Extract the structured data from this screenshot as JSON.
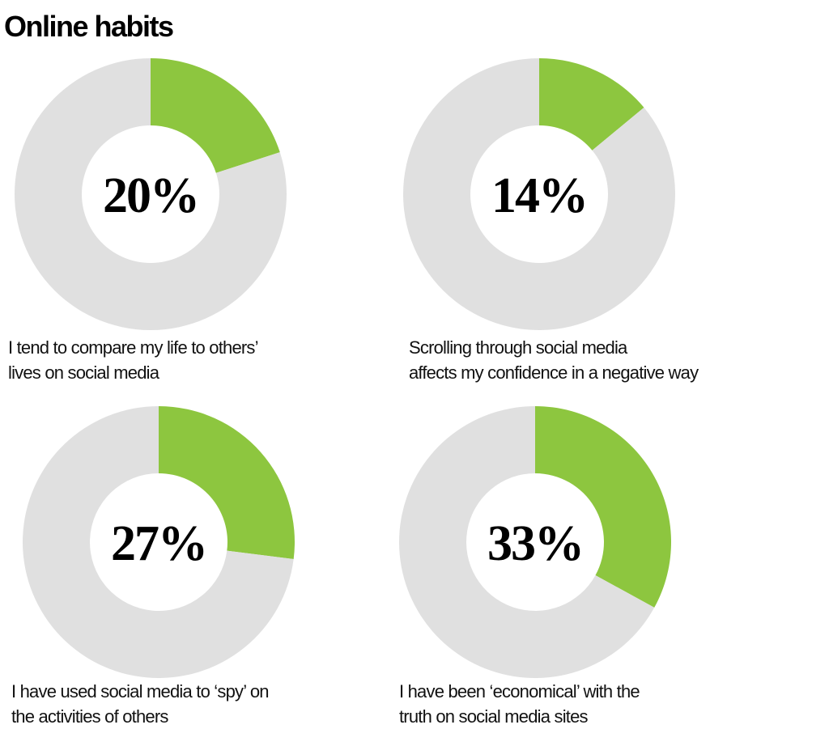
{
  "title": "Online habits",
  "chart_data": [
    {
      "type": "donut",
      "values": [
        20,
        80
      ],
      "value_labels": [
        "20%",
        null
      ],
      "colors": [
        "#8dc63f",
        "#e0e0e0"
      ],
      "caption": [
        "I tend to compare my life to others’",
        "lives on social media"
      ]
    },
    {
      "type": "donut",
      "values": [
        14,
        86
      ],
      "value_labels": [
        "14%",
        null
      ],
      "colors": [
        "#8dc63f",
        "#e0e0e0"
      ],
      "caption": [
        "Scrolling through social media",
        "affects my confidence in a negative way"
      ]
    },
    {
      "type": "donut",
      "values": [
        27,
        73
      ],
      "value_labels": [
        "27%",
        null
      ],
      "colors": [
        "#8dc63f",
        "#e0e0e0"
      ],
      "caption": [
        "I have used social media to ‘spy’ on",
        "the activities of others"
      ]
    },
    {
      "type": "donut",
      "values": [
        33,
        67
      ],
      "value_labels": [
        "33%",
        null
      ],
      "colors": [
        "#8dc63f",
        "#e0e0e0"
      ],
      "caption": [
        "I have been ‘economical’ with the",
        "truth on social media sites"
      ]
    }
  ]
}
